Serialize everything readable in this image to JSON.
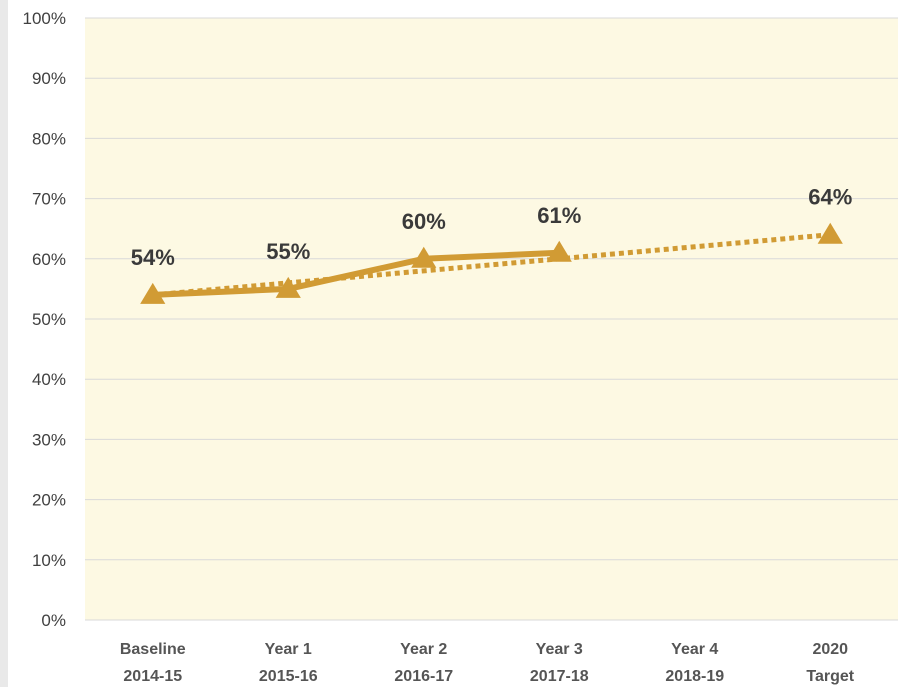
{
  "chart_data": {
    "type": "line",
    "categories": [
      [
        "Baseline",
        "2014-15"
      ],
      [
        "Year 1",
        "2015-16"
      ],
      [
        "Year 2",
        "2016-17"
      ],
      [
        "Year 3",
        "2017-18"
      ],
      [
        "Year 4",
        "2018-19"
      ],
      [
        "2020",
        "Target"
      ]
    ],
    "y_ticks": [
      "0%",
      "10%",
      "20%",
      "30%",
      "40%",
      "50%",
      "60%",
      "70%",
      "80%",
      "90%",
      "100%"
    ],
    "ylim": [
      0,
      100
    ],
    "grid": true,
    "legend": "none",
    "series": [
      {
        "style": "solid",
        "values": [
          54,
          55,
          60,
          61,
          null,
          64
        ],
        "data_labels": [
          "54%",
          "55%",
          "60%",
          "61%",
          "",
          "64%"
        ]
      },
      {
        "style": "dotted",
        "values": [
          54,
          56,
          58,
          60,
          62,
          64
        ]
      }
    ],
    "colors": {
      "line": "#d19b34",
      "plot_background": "#fdf9e3",
      "grid": "#d9d9d9"
    }
  }
}
